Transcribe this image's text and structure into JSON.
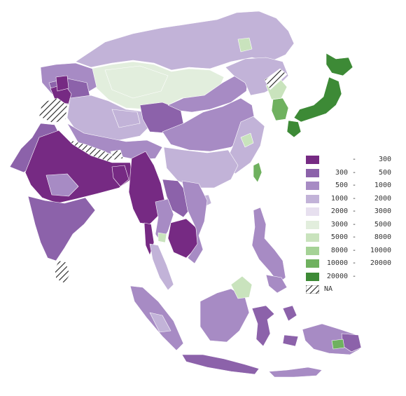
{
  "legend": {
    "items": [
      {
        "lo": "",
        "sep": "-",
        "hi": "300",
        "color": "#762a83"
      },
      {
        "lo": "300",
        "sep": "-",
        "hi": "500",
        "color": "#8c62aa"
      },
      {
        "lo": "500",
        "sep": "-",
        "hi": "1000",
        "color": "#a78bc4"
      },
      {
        "lo": "1000",
        "sep": "-",
        "hi": "2000",
        "color": "#c2b3d8"
      },
      {
        "lo": "2000",
        "sep": "-",
        "hi": "3000",
        "color": "#e7e0ef"
      },
      {
        "lo": "3000",
        "sep": "-",
        "hi": "5000",
        "color": "#e2eedd"
      },
      {
        "lo": "5000",
        "sep": "-",
        "hi": "8000",
        "color": "#c9e3bd"
      },
      {
        "lo": "8000",
        "sep": "-",
        "hi": "10000",
        "color": "#a5d296"
      },
      {
        "lo": "10000",
        "sep": "-",
        "hi": "20000",
        "color": "#6fb15f"
      },
      {
        "lo": "20000",
        "sep": "-",
        "hi": "",
        "color": "#3d8a36"
      }
    ],
    "na": {
      "label": "NA",
      "pattern": "diagonal-hatch"
    }
  },
  "regions": [
    {
      "id": "mongolia",
      "color": "#e2eedd"
    },
    {
      "id": "russia-far-east",
      "color": "#c2b3d8"
    },
    {
      "id": "northeast-china",
      "color": "#c2b3d8"
    },
    {
      "id": "inner-mongolia",
      "color": "#a78bc4"
    },
    {
      "id": "xinjiang",
      "color": "#c2b3d8"
    },
    {
      "id": "kazakhstan-east",
      "color": "#a78bc4"
    },
    {
      "id": "kyrgyzstan",
      "color": "#8c62aa"
    },
    {
      "id": "tajikistan",
      "color": "#762a83"
    },
    {
      "id": "tibet",
      "color": "#a78bc4"
    },
    {
      "id": "qinghai",
      "color": "#8c62aa"
    },
    {
      "id": "central-china",
      "color": "#a78bc4"
    },
    {
      "id": "south-china",
      "color": "#c2b3d8"
    },
    {
      "id": "east-china-coast",
      "color": "#c2b3d8"
    },
    {
      "id": "korea",
      "color": "#c9e3bd"
    },
    {
      "id": "south-korea",
      "color": "#6fb15f"
    },
    {
      "id": "japan-honshu",
      "color": "#3d8a36"
    },
    {
      "id": "japan-hokkaido",
      "color": "#3d8a36"
    },
    {
      "id": "japan-kyushu",
      "color": "#3d8a36"
    },
    {
      "id": "taiwan",
      "color": "#6fb15f"
    },
    {
      "id": "pakistan",
      "color": "#8c62aa"
    },
    {
      "id": "north-india",
      "color": "#762a83"
    },
    {
      "id": "south-india",
      "color": "#8c62aa"
    },
    {
      "id": "sri-lanka",
      "color": "NA"
    },
    {
      "id": "nepal",
      "color": "NA"
    },
    {
      "id": "kashmir",
      "color": "NA"
    },
    {
      "id": "bhutan",
      "color": "NA"
    },
    {
      "id": "bangladesh",
      "color": "#762a83"
    },
    {
      "id": "myanmar",
      "color": "#762a83"
    },
    {
      "id": "thailand",
      "color": "#a78bc4"
    },
    {
      "id": "laos",
      "color": "#8c62aa"
    },
    {
      "id": "cambodia",
      "color": "#762a83"
    },
    {
      "id": "vietnam",
      "color": "#a78bc4"
    },
    {
      "id": "malay-peninsula",
      "color": "#c2b3d8"
    },
    {
      "id": "sumatra",
      "color": "#a78bc4"
    },
    {
      "id": "java",
      "color": "#8c62aa"
    },
    {
      "id": "borneo",
      "color": "#a78bc4"
    },
    {
      "id": "sabah",
      "color": "#c9e3bd"
    },
    {
      "id": "sulawesi",
      "color": "#8c62aa"
    },
    {
      "id": "philippines",
      "color": "#a78bc4"
    },
    {
      "id": "papua",
      "color": "#a78bc4"
    },
    {
      "id": "papua-east",
      "color": "#8c62aa"
    },
    {
      "id": "timor",
      "color": "#a78bc4"
    },
    {
      "id": "hainan",
      "color": "#c2b3d8"
    }
  ]
}
